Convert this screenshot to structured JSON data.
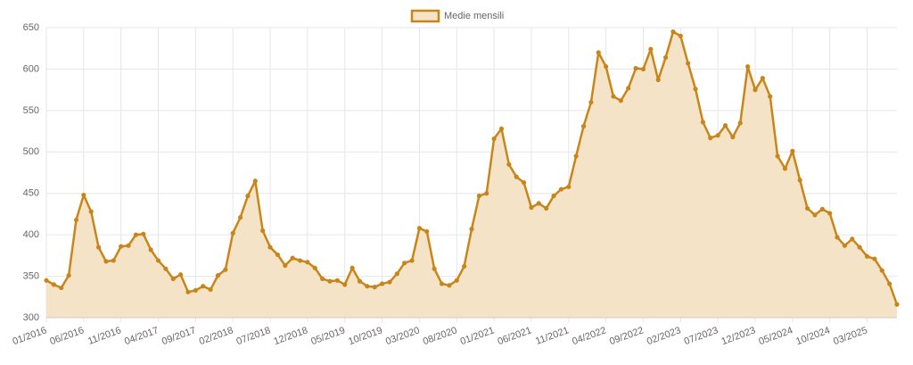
{
  "chart_data": {
    "type": "line",
    "categories": [
      "01/2016",
      null,
      null,
      null,
      null,
      "06/2016",
      null,
      null,
      null,
      null,
      "11/2016",
      null,
      null,
      null,
      null,
      "04/2017",
      null,
      null,
      null,
      null,
      "09/2017",
      null,
      null,
      null,
      null,
      "02/2018",
      null,
      null,
      null,
      null,
      "07/2018",
      null,
      null,
      null,
      null,
      "12/2018",
      null,
      null,
      null,
      null,
      "05/2019",
      null,
      null,
      null,
      null,
      "10/2019",
      null,
      null,
      null,
      null,
      "03/2020",
      null,
      null,
      null,
      null,
      "08/2020",
      null,
      null,
      null,
      null,
      "01/2021",
      null,
      null,
      null,
      null,
      "06/2021",
      null,
      null,
      null,
      null,
      "11/2021",
      null,
      null,
      null,
      null,
      "04/2022",
      null,
      null,
      null,
      null,
      "09/2022",
      null,
      null,
      null,
      null,
      "02/2023",
      null,
      null,
      null,
      null,
      "07/2023",
      null,
      null,
      null,
      null,
      "12/2023",
      null,
      null,
      null,
      null,
      "05/2024",
      null,
      null,
      null,
      null,
      "10/2024",
      null,
      null,
      null,
      null,
      "03/2025",
      null,
      null,
      null,
      null
    ],
    "series": [
      {
        "name": "Medie mensili",
        "color": "#c8861a",
        "fill": "#f5e3c8",
        "values": [
          345,
          340,
          336,
          351,
          418,
          448,
          428,
          385,
          368,
          369,
          386,
          387,
          400,
          401,
          382,
          369,
          359,
          347,
          352,
          331,
          333,
          338,
          334,
          351,
          358,
          402,
          421,
          447,
          465,
          405,
          385,
          376,
          363,
          372,
          369,
          367,
          360,
          347,
          344,
          345,
          340,
          360,
          344,
          338,
          337,
          341,
          343,
          353,
          366,
          369,
          408,
          404,
          359,
          341,
          339,
          345,
          362,
          407,
          447,
          450,
          516,
          528,
          485,
          470,
          463,
          433,
          438,
          432,
          447,
          455,
          458,
          495,
          531,
          560,
          620,
          603,
          567,
          562,
          577,
          601,
          600,
          624,
          587,
          614,
          645,
          640,
          607,
          576,
          536,
          517,
          520,
          532,
          518,
          535,
          603,
          575,
          589,
          567,
          495,
          480,
          501,
          466,
          432,
          424,
          431,
          426,
          397,
          387,
          395,
          385,
          374,
          371,
          357,
          341,
          316
        ]
      }
    ],
    "ylim": [
      300,
      650
    ],
    "yticks": [
      300,
      350,
      400,
      450,
      500,
      550,
      600,
      650
    ],
    "grid": true,
    "legend": "top"
  }
}
